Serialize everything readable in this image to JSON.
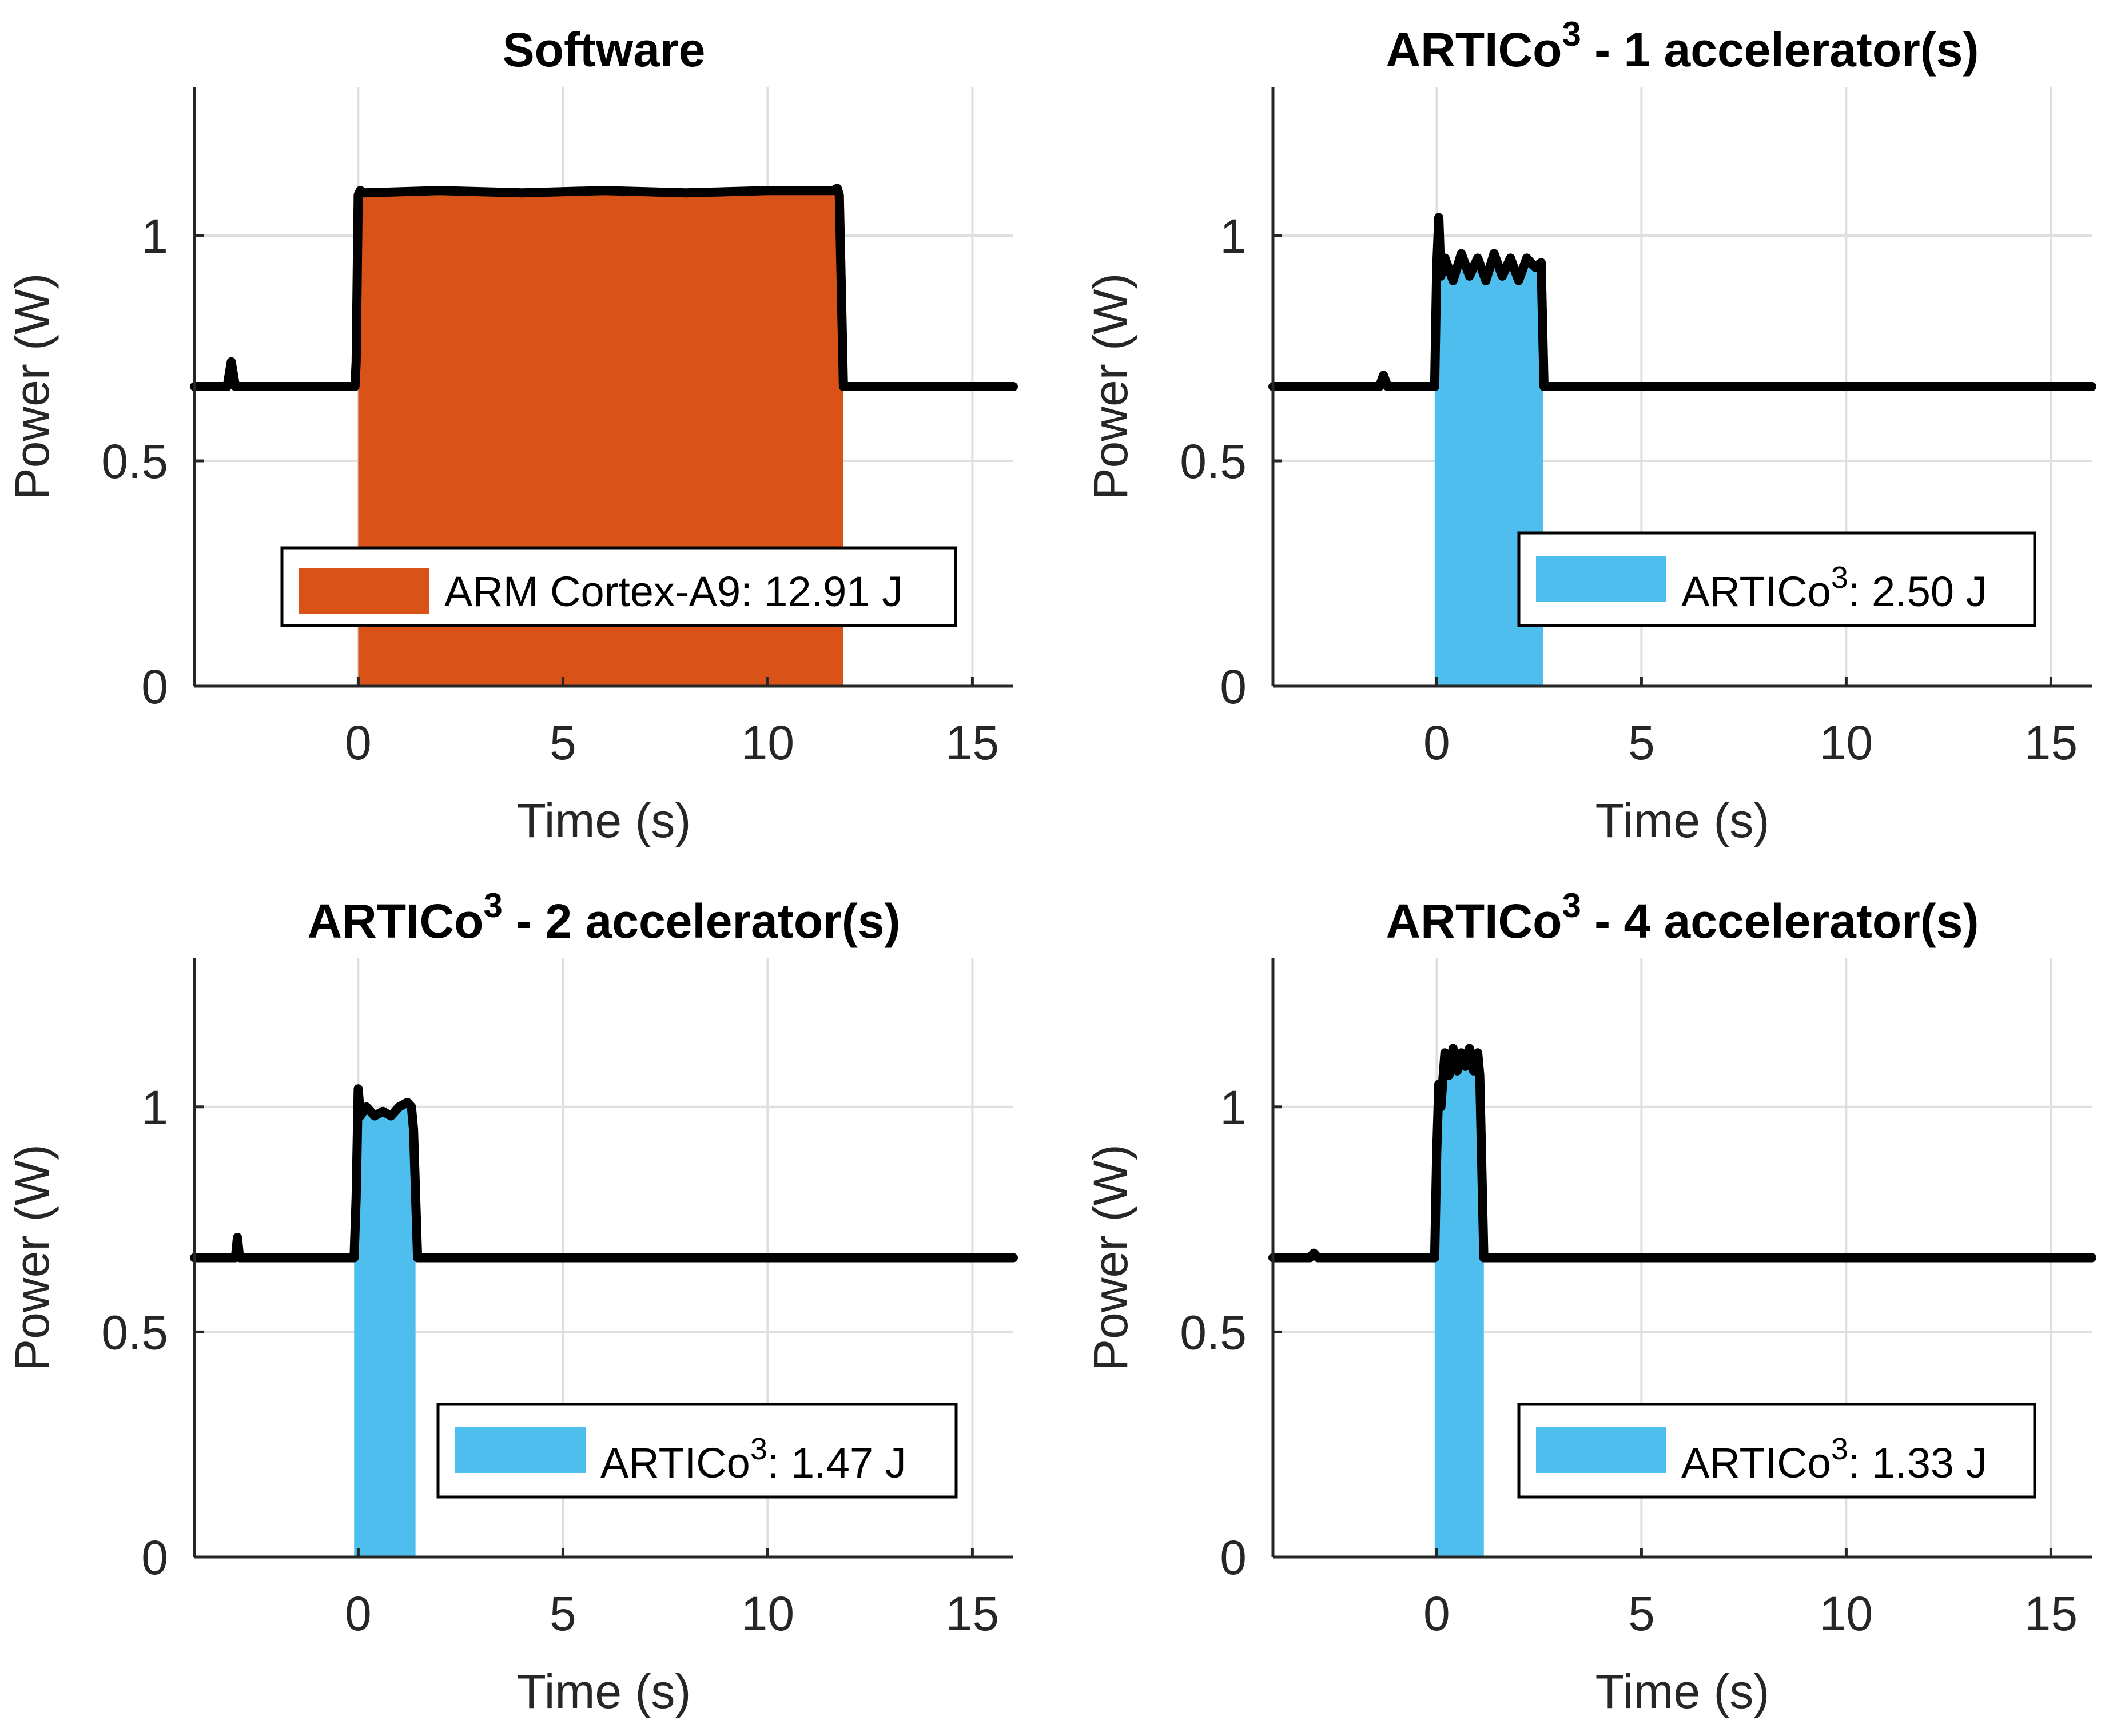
{
  "figure": {
    "colors": {
      "software": "#D95319",
      "artico": "#4DBEEE",
      "trace": "#000000",
      "grid": "#DFDFDF",
      "axis": "#262626"
    }
  },
  "chart_data": [
    {
      "type": "area",
      "title": "Software",
      "title_base": "Software",
      "title_sup": "",
      "title_rest": "",
      "xlabel": "Time (s)",
      "ylabel": "Power (W)",
      "xlim": [
        -4,
        16
      ],
      "ylim": [
        0,
        1.33
      ],
      "xticks": [
        0,
        5,
        10,
        15
      ],
      "yticks": [
        0,
        0.5,
        1
      ],
      "grid": true,
      "legend": {
        "label_base": "ARM Cortex-A9",
        "label_sup": "",
        "label_rest": ": 12.91 J",
        "color": "#D95319",
        "placement": "bottom-center"
      },
      "fill": {
        "x_start": 0,
        "x_end": 11.85,
        "color": "#D95319"
      },
      "series": [
        {
          "name": "power",
          "x": [
            -4,
            -3.2,
            -3.1,
            -3.0,
            -2.6,
            -1.0,
            -0.08,
            -0.05,
            0.0,
            0.05,
            0.15,
            2,
            4,
            6,
            8,
            10,
            11.6,
            11.7,
            11.75,
            11.85,
            12.0,
            16
          ],
          "y": [
            0.665,
            0.665,
            0.72,
            0.665,
            0.665,
            0.665,
            0.665,
            0.72,
            1.09,
            1.1,
            1.095,
            1.1,
            1.095,
            1.1,
            1.095,
            1.1,
            1.1,
            1.105,
            1.09,
            0.665,
            0.665,
            0.665
          ]
        }
      ]
    },
    {
      "type": "area",
      "title": "ARTICo3 - 1 accelerator(s)",
      "title_base": "ARTICo",
      "title_sup": "3",
      "title_rest": " - 1 accelerator(s)",
      "xlabel": "Time (s)",
      "ylabel": "Power (W)",
      "xlim": [
        -4,
        16
      ],
      "ylim": [
        0,
        1.33
      ],
      "xticks": [
        0,
        5,
        10,
        15
      ],
      "yticks": [
        0,
        0.5,
        1
      ],
      "grid": true,
      "legend": {
        "label_base": "ARTICo",
        "label_sup": "3",
        "label_rest": ": 2.50 J",
        "color": "#4DBEEE",
        "placement": "bottom-right"
      },
      "fill": {
        "x_start": -0.05,
        "x_end": 2.6,
        "color": "#4DBEEE"
      },
      "series": [
        {
          "name": "power",
          "x": [
            -4,
            -1.4,
            -1.3,
            -1.2,
            -0.05,
            0.0,
            0.05,
            0.1,
            0.2,
            0.4,
            0.6,
            0.8,
            1.0,
            1.2,
            1.4,
            1.6,
            1.8,
            2.0,
            2.2,
            2.4,
            2.55,
            2.62,
            16
          ],
          "y": [
            0.665,
            0.665,
            0.69,
            0.665,
            0.665,
            0.93,
            1.04,
            0.91,
            0.95,
            0.9,
            0.96,
            0.91,
            0.95,
            0.9,
            0.96,
            0.91,
            0.95,
            0.9,
            0.95,
            0.93,
            0.94,
            0.665,
            0.665
          ]
        }
      ]
    },
    {
      "type": "area",
      "title": "ARTICo3 - 2 accelerator(s)",
      "title_base": "ARTICo",
      "title_sup": "3",
      "title_rest": " - 2 accelerator(s)",
      "xlabel": "Time (s)",
      "ylabel": "Power (W)",
      "xlim": [
        -4,
        16
      ],
      "ylim": [
        0,
        1.33
      ],
      "xticks": [
        0,
        5,
        10,
        15
      ],
      "yticks": [
        0,
        0.5,
        1
      ],
      "grid": true,
      "legend": {
        "label_base": "ARTICo",
        "label_sup": "3",
        "label_rest": ": 1.47 J",
        "color": "#4DBEEE",
        "placement": "bottom-right"
      },
      "fill": {
        "x_start": -0.1,
        "x_end": 1.4,
        "color": "#4DBEEE"
      },
      "series": [
        {
          "name": "power",
          "x": [
            -4,
            -3.0,
            -2.95,
            -2.9,
            -2.8,
            -0.1,
            -0.05,
            0.0,
            0.05,
            0.2,
            0.4,
            0.6,
            0.8,
            1.0,
            1.2,
            1.3,
            1.35,
            1.45,
            16
          ],
          "y": [
            0.665,
            0.665,
            0.71,
            0.665,
            0.665,
            0.665,
            0.8,
            1.04,
            0.98,
            1.0,
            0.98,
            0.99,
            0.98,
            1.0,
            1.01,
            1.0,
            0.95,
            0.665,
            0.665
          ]
        }
      ]
    },
    {
      "type": "area",
      "title": "ARTICo3 - 4 accelerator(s)",
      "title_base": "ARTICo",
      "title_sup": "3",
      "title_rest": " - 4 accelerator(s)",
      "xlabel": "Time (s)",
      "ylabel": "Power (W)",
      "xlim": [
        -4,
        16
      ],
      "ylim": [
        0,
        1.33
      ],
      "xticks": [
        0,
        5,
        10,
        15
      ],
      "yticks": [
        0,
        0.5,
        1
      ],
      "grid": true,
      "legend": {
        "label_base": "ARTICo",
        "label_sup": "3",
        "label_rest": ": 1.33 J",
        "color": "#4DBEEE",
        "placement": "bottom-right"
      },
      "fill": {
        "x_start": -0.05,
        "x_end": 1.15,
        "color": "#4DBEEE"
      },
      "series": [
        {
          "name": "power",
          "x": [
            -4,
            -3.1,
            -3.0,
            -2.9,
            -0.05,
            0.0,
            0.05,
            0.1,
            0.2,
            0.3,
            0.4,
            0.5,
            0.6,
            0.7,
            0.8,
            0.9,
            1.0,
            1.05,
            1.15,
            16
          ],
          "y": [
            0.665,
            0.665,
            0.675,
            0.665,
            0.665,
            0.9,
            1.05,
            1.0,
            1.12,
            1.07,
            1.13,
            1.08,
            1.12,
            1.09,
            1.13,
            1.08,
            1.12,
            1.07,
            0.665,
            0.665
          ]
        }
      ]
    }
  ]
}
